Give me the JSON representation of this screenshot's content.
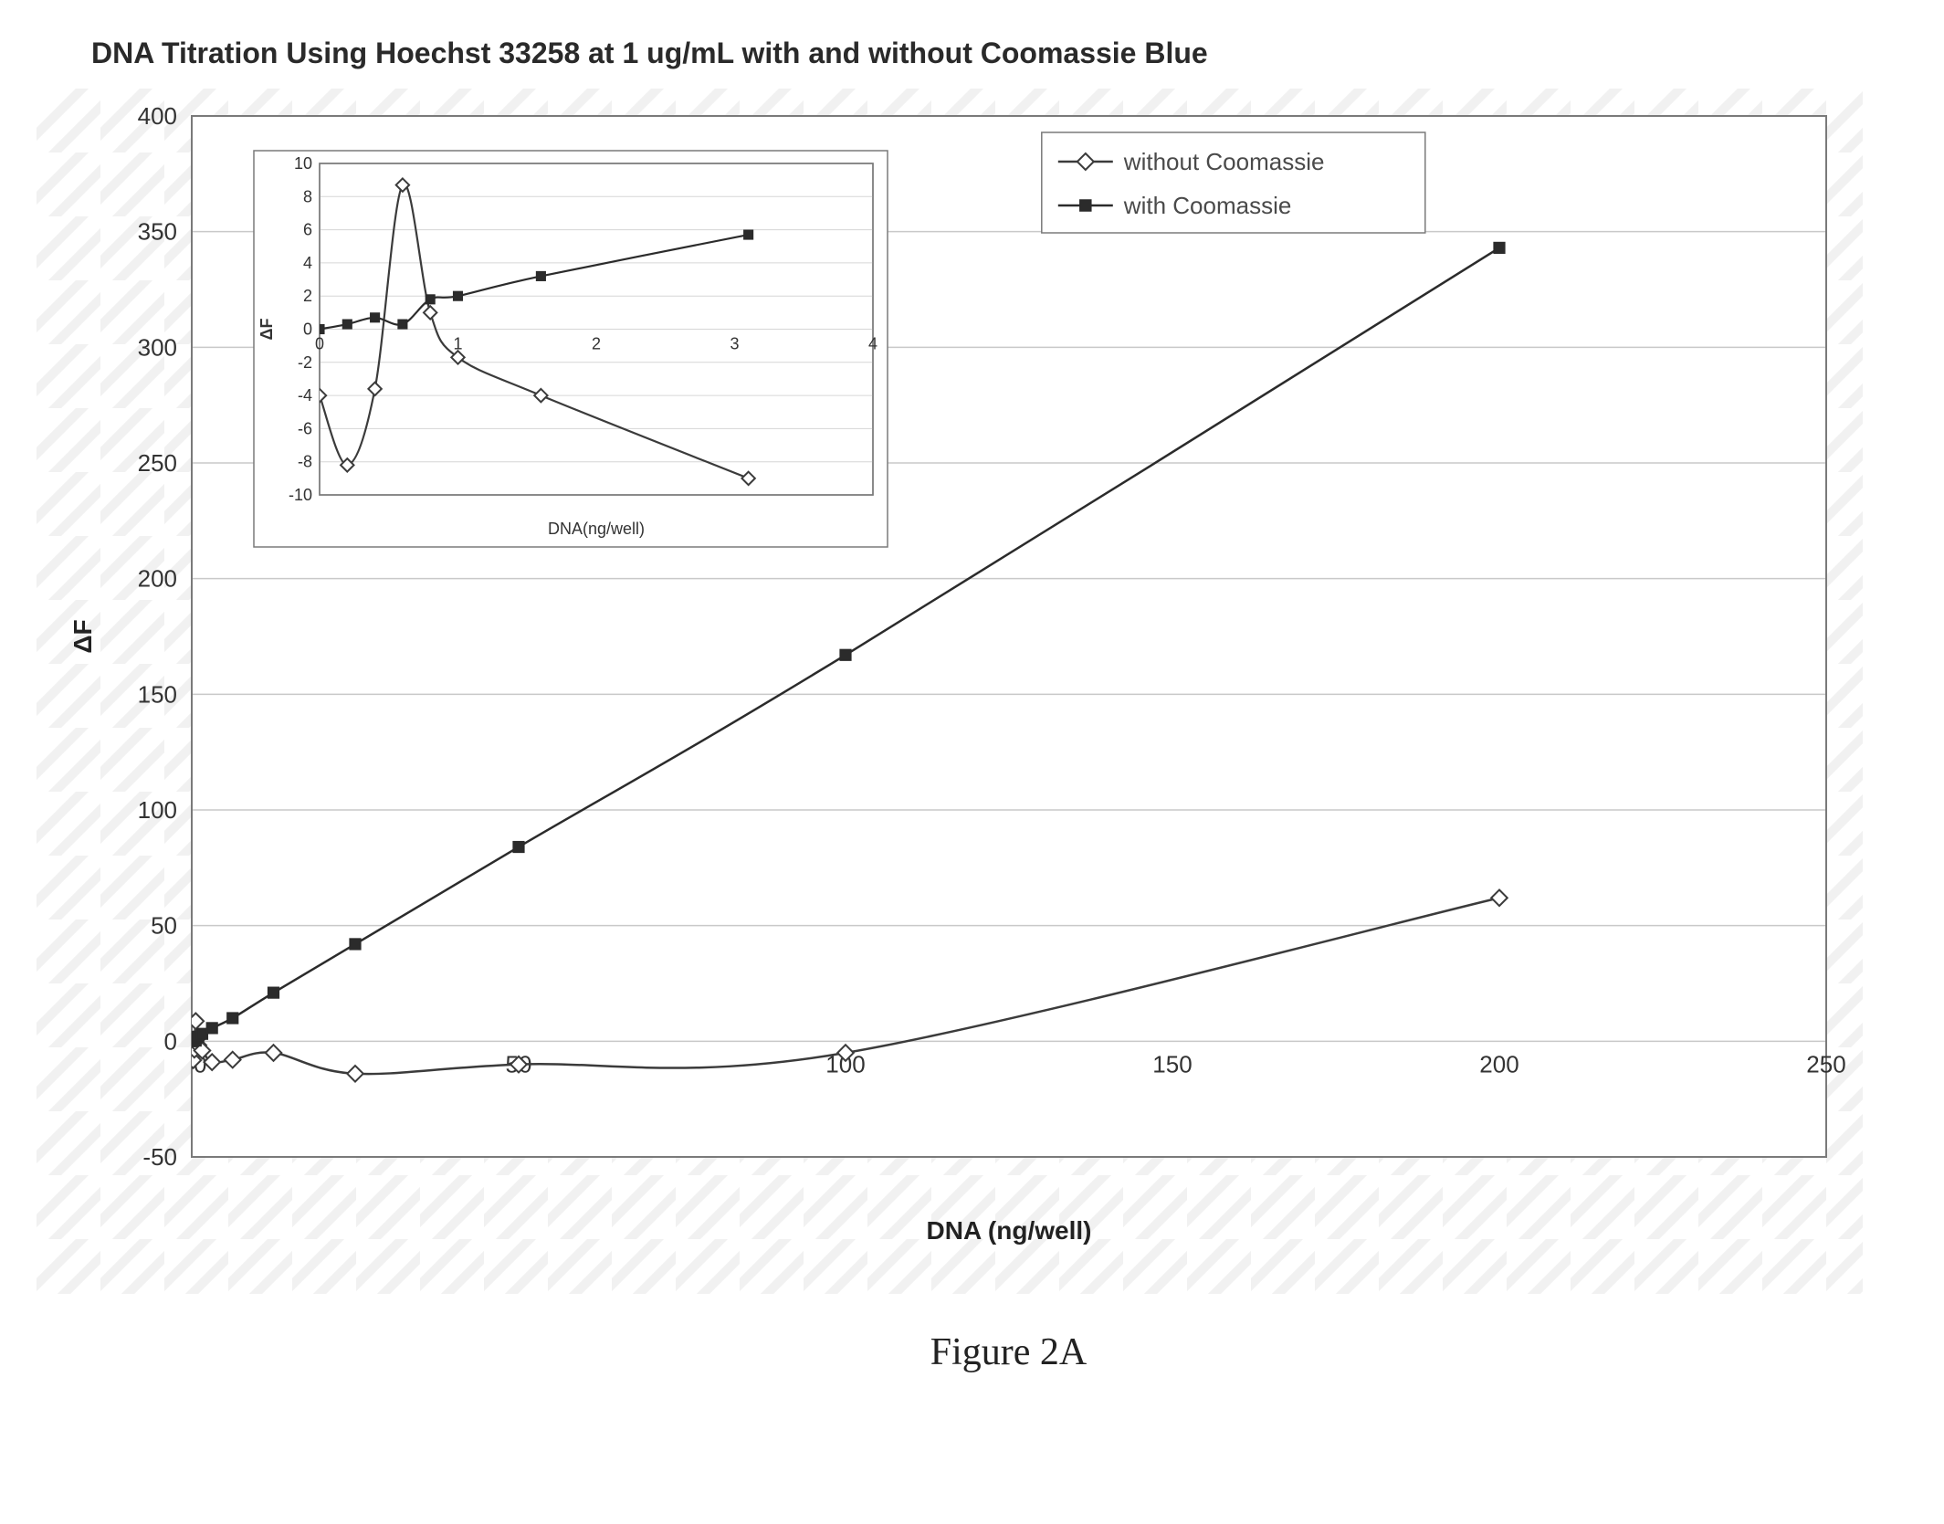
{
  "title": "DNA Titration Using Hoechst 33258 at 1 ug/mL with and without Coomassie Blue",
  "figure_caption": "Figure 2A",
  "main_chart": {
    "type": "line",
    "xlabel": "DNA (ng/well)",
    "ylabel": "ΔF",
    "title_fontsize": 32,
    "label_fontsize": 28,
    "tick_fontsize": 26,
    "xlim": [
      0,
      250
    ],
    "ylim": [
      -50,
      400
    ],
    "xtick_step": 50,
    "ytick_step": 50,
    "xticks": [
      0,
      50,
      100,
      150,
      200,
      250
    ],
    "yticks": [
      -50,
      0,
      50,
      100,
      150,
      200,
      250,
      300,
      350,
      400
    ],
    "background_color": "#ffffff",
    "plot_area_color": "#ffffff",
    "grid_color": "#c9c9c9",
    "border_color": "#7a7a7a",
    "axis_text_color": "#333333",
    "line_width": 2.5,
    "marker_size": 9,
    "grid": {
      "major_y": true,
      "major_x": false
    },
    "legend": {
      "position": "top-right-inside",
      "border_color": "#7a7a7a",
      "background_color": "#ffffff",
      "fontsize": 26,
      "text_color": "#4a4a4a",
      "items": [
        {
          "label": "without Coomassie",
          "marker": "diamond-open",
          "color": "#3b3b3b",
          "line_color": "#3b3b3b"
        },
        {
          "label": "with Coomassie",
          "marker": "square-filled",
          "color": "#2b2b2b",
          "line_color": "#2b2b2b"
        }
      ]
    },
    "series": [
      {
        "name": "without Coomassie",
        "marker": "diamond-open",
        "marker_fill": "#ffffff",
        "marker_stroke": "#3b3b3b",
        "line_color": "#3b3b3b",
        "x": [
          0,
          0.2,
          0.4,
          0.6,
          0.8,
          1,
          1.6,
          3.1,
          6.25,
          12.5,
          25,
          50,
          100,
          200
        ],
        "y": [
          -4,
          -8.2,
          -3.6,
          8.7,
          1,
          -1.7,
          -4,
          -9,
          -8,
          -5,
          -14,
          -10,
          -5,
          62
        ]
      },
      {
        "name": "with Coomassie",
        "marker": "square-filled",
        "marker_fill": "#2b2b2b",
        "marker_stroke": "#2b2b2b",
        "line_color": "#2b2b2b",
        "x": [
          0,
          0.2,
          0.4,
          0.6,
          0.8,
          1,
          1.6,
          3.1,
          6.25,
          12.5,
          25,
          50,
          100,
          200
        ],
        "y": [
          0,
          0.3,
          0.7,
          0.3,
          1.8,
          2,
          3.2,
          5.7,
          10,
          21,
          42,
          84,
          167,
          343
        ]
      }
    ]
  },
  "inset_chart": {
    "type": "line",
    "xlabel": "DNA(ng/well)",
    "ylabel": "ΔF",
    "label_fontsize": 18,
    "tick_fontsize": 18,
    "xlim": [
      0,
      4
    ],
    "ylim": [
      -10,
      10
    ],
    "xtick_step": 1,
    "ytick_step": 2,
    "xticks": [
      0,
      1,
      2,
      3,
      4
    ],
    "yticks": [
      -10,
      -8,
      -6,
      -4,
      -2,
      0,
      2,
      4,
      6,
      8,
      10
    ],
    "background_color": "#ffffff",
    "border_color": "#7a7a7a",
    "grid_color": "#d6d6d6",
    "axis_text_color": "#333333",
    "line_width": 2.2,
    "marker_size": 8,
    "series": [
      {
        "name": "without Coomassie",
        "marker": "diamond-open",
        "marker_fill": "#ffffff",
        "marker_stroke": "#3b3b3b",
        "line_color": "#3b3b3b",
        "x": [
          0,
          0.2,
          0.4,
          0.6,
          0.8,
          1,
          1.6,
          3.1
        ],
        "y": [
          -4,
          -8.2,
          -3.6,
          8.7,
          1,
          -1.7,
          -4,
          -9
        ]
      },
      {
        "name": "with Coomassie",
        "marker": "square-filled",
        "marker_fill": "#2b2b2b",
        "marker_stroke": "#2b2b2b",
        "line_color": "#2b2b2b",
        "x": [
          0,
          0.2,
          0.4,
          0.6,
          0.8,
          1,
          1.6,
          3.1
        ],
        "y": [
          0,
          0.3,
          0.7,
          0.3,
          1.8,
          2,
          3.2,
          5.7
        ]
      }
    ]
  }
}
